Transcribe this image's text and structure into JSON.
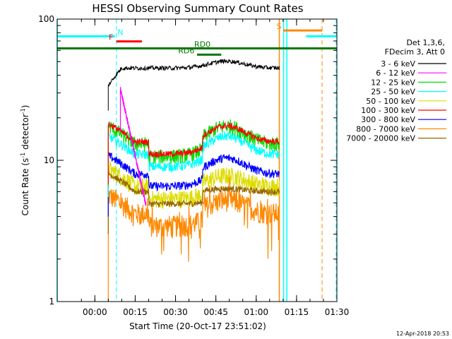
{
  "chart_data": {
    "type": "line",
    "title": "HESSI Observing Summary Count Rates",
    "xlabel": "Start Time (20-Oct-17 23:51:02)",
    "ylabel": "Count Rate (s",
    "ylabel_sup": "-1",
    "ylabel_tail": " detector",
    "ylabel_sup2": "-1",
    "ylabel_close": ")",
    "ylog": true,
    "ylim": [
      1,
      100
    ],
    "yticks": [
      {
        "value": 1,
        "label": "1"
      },
      {
        "value": 10,
        "label": "10"
      },
      {
        "value": 100,
        "label": "100"
      }
    ],
    "xlim_min": [
      -9,
      95
    ],
    "xticks": [
      {
        "min": 5,
        "label": "00:00"
      },
      {
        "min": 20,
        "label": "00:15"
      },
      {
        "min": 35,
        "label": "00:30"
      },
      {
        "min": 50,
        "label": "00:45"
      },
      {
        "min": 65,
        "label": "01:00"
      },
      {
        "min": 80,
        "label": "01:15"
      },
      {
        "min": 95,
        "label": "01:30"
      }
    ],
    "legend_header": [
      "Det 1,3,6,",
      "FDecim 3, Att 0"
    ],
    "series": [
      {
        "name": "3 - 6 keV",
        "color": "#000000",
        "base": 45,
        "noise": 0.035,
        "start": 10,
        "end": 73.6
      },
      {
        "name": "6 - 12 keV",
        "color": "#ff00ff",
        "base": 32,
        "noise": 0.04,
        "start": 14.5,
        "end": 24
      },
      {
        "name": "12 - 25 keV",
        "color": "#00dd00",
        "base": 13,
        "noise": 0.12,
        "start": 10,
        "end": 73.6
      },
      {
        "name": "25 - 50 keV",
        "color": "#00ffff",
        "base": 11,
        "noise": 0.08,
        "start": 10,
        "end": 73.6
      },
      {
        "name": "50 - 100 keV",
        "color": "#dddd00",
        "base": 6.5,
        "noise": 0.15,
        "start": 10,
        "end": 73.6
      },
      {
        "name": "100 - 300 keV",
        "color": "#ff0000",
        "base": 13.5,
        "noise": 0.05,
        "start": 10,
        "end": 73.6
      },
      {
        "name": "300 - 800 keV",
        "color": "#0000ff",
        "base": 8,
        "noise": 0.07,
        "start": 10,
        "end": 73.6
      },
      {
        "name": "800 - 7000 keV",
        "color": "#ff8800",
        "base": 4.2,
        "noise": 0.18,
        "start": 10,
        "end": 73.6
      },
      {
        "name": "7000 - 20000 keV",
        "color": "#996600",
        "base": 6,
        "noise": 0.05,
        "start": 10,
        "end": 73.6
      }
    ],
    "flags": [
      {
        "label": "N",
        "color": "#00ffff",
        "value": 75.5,
        "segments": [
          [
            -9,
            12.5
          ],
          [
            83.5,
            95
          ]
        ],
        "label_at": 14.5
      },
      {
        "label": "F",
        "color": "#ff0000",
        "value": 69.5,
        "segments": [
          [
            13,
            22.5
          ]
        ],
        "label_at": 11
      },
      {
        "label": "RD0",
        "color": "#007700",
        "value": 62,
        "segments": [
          [
            -9,
            95
          ]
        ],
        "label_at": 45
      },
      {
        "label": "RD6",
        "color": "#007700",
        "value": 56,
        "segments": [
          [
            43,
            52
          ]
        ],
        "label_at": 39
      },
      {
        "label": "S",
        "color": "#ff8800",
        "value": 83,
        "segments": [
          [
            75,
            89.5
          ]
        ],
        "label_at": 73.5
      }
    ],
    "vlines": [
      {
        "min": -9,
        "color": "#00ffff",
        "dashed": false
      },
      {
        "min": 13,
        "color": "#00ffff",
        "dashed": true
      },
      {
        "min": 73.6,
        "color": "#ff8800",
        "dashed": false
      },
      {
        "min": 75.2,
        "color": "#00ffff",
        "dashed": false
      },
      {
        "min": 76.4,
        "color": "#00ffff",
        "dashed": false
      },
      {
        "min": 89.5,
        "color": "#ff8800",
        "dashed": true
      },
      {
        "min": 96,
        "color": "#00ffff",
        "dashed": true
      }
    ],
    "timestamp": "12-Apr-2018 20:53"
  }
}
